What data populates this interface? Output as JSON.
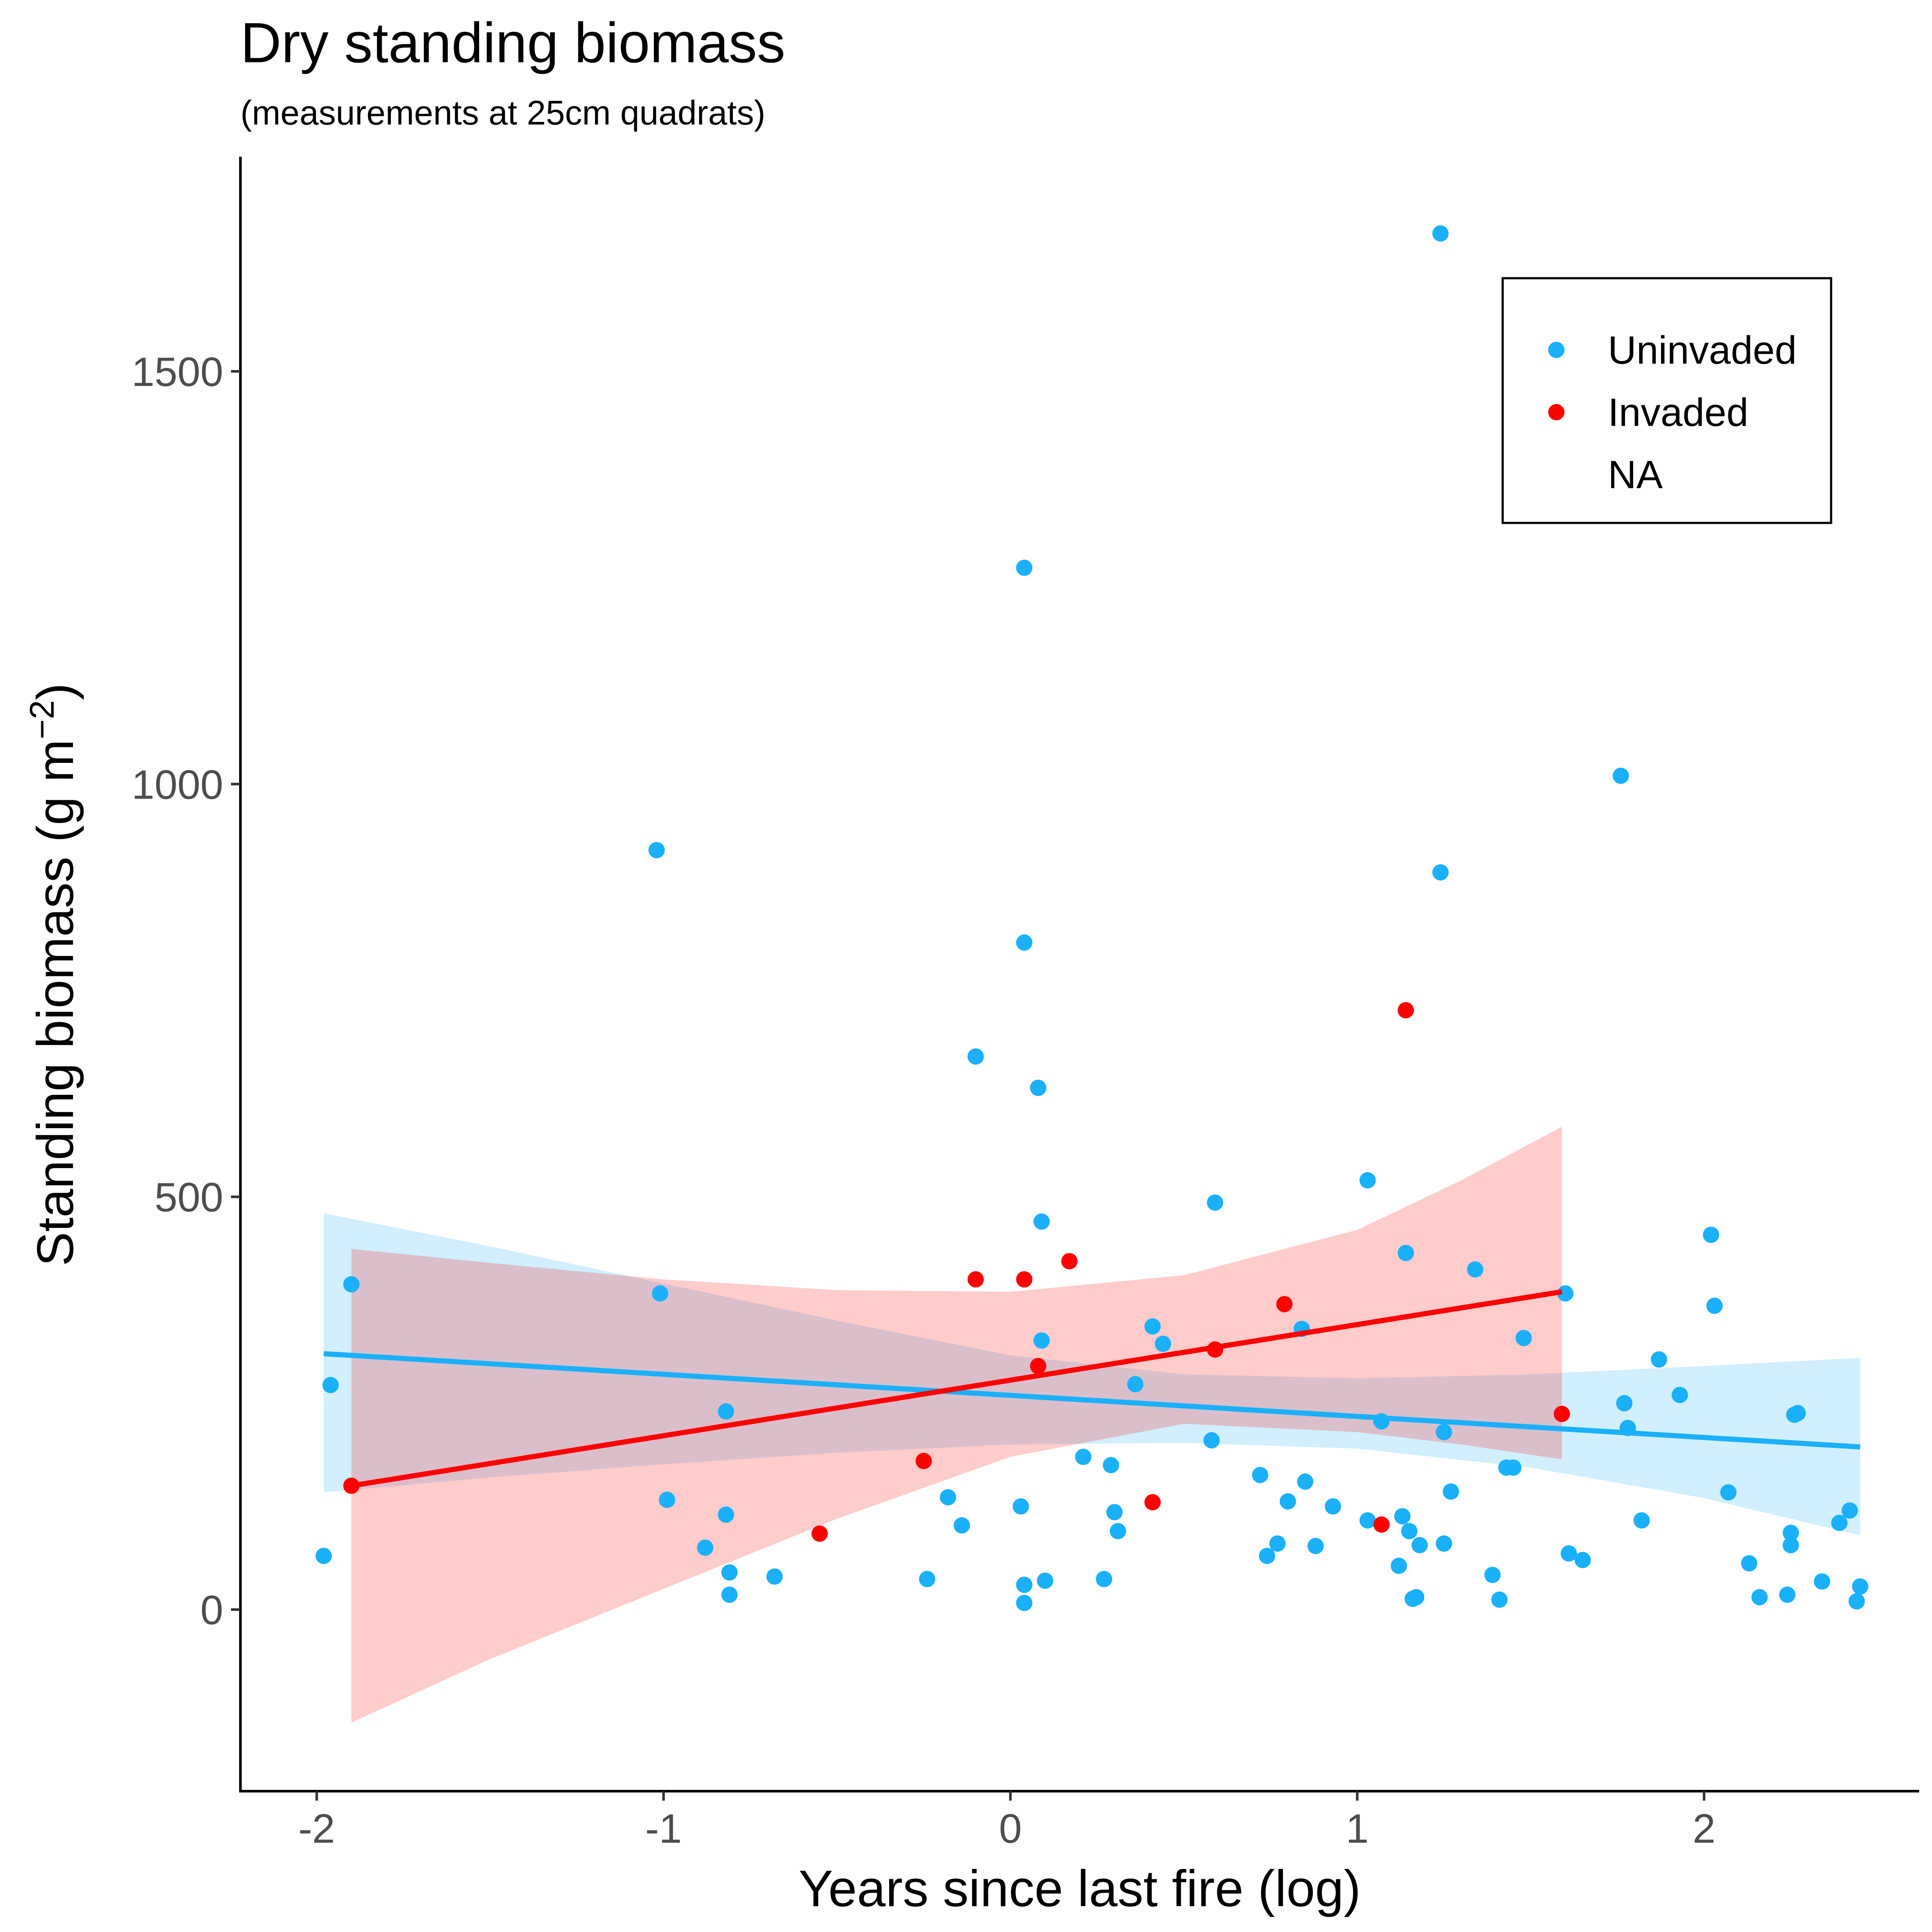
{
  "chart_data": {
    "type": "scatter",
    "title": "Dry standing biomass",
    "subtitle": "(measurements at 25cm quadrats)",
    "xlabel": "Years since last fire (log)",
    "ylabel_main": "Standing biomass (g m",
    "ylabel_sup": "−2",
    "ylabel_close": ")",
    "xlim": [
      -2.22,
      2.62
    ],
    "ylim": [
      -220,
      1760
    ],
    "xticks": [
      -2,
      -1,
      0,
      1,
      2
    ],
    "xtick_labels": [
      "-2",
      "-1",
      "0",
      "1",
      "2"
    ],
    "yticks": [
      0,
      500,
      1000,
      1500
    ],
    "ytick_labels": [
      "0",
      "500",
      "1000",
      "1500"
    ],
    "grid": false,
    "legend_position": "top-right",
    "legend": [
      {
        "label": "Uninvaded",
        "color": "#1AB0FA",
        "marker": true
      },
      {
        "label": "Invaded",
        "color": "#FF0000",
        "marker": true
      },
      {
        "label": "NA",
        "color": "#FFFFFF",
        "marker": false
      }
    ],
    "series": [
      {
        "name": "Uninvaded",
        "color": "#1AB0FA",
        "points": [
          [
            -1.98,
            65
          ],
          [
            -1.96,
            272
          ],
          [
            -1.9,
            394
          ],
          [
            -1.02,
            920
          ],
          [
            -1.01,
            383
          ],
          [
            -0.99,
            133
          ],
          [
            -0.88,
            75
          ],
          [
            -0.82,
            240
          ],
          [
            -0.82,
            115
          ],
          [
            -0.81,
            45
          ],
          [
            -0.81,
            18
          ],
          [
            -0.68,
            40
          ],
          [
            -0.24,
            37
          ],
          [
            -0.18,
            136
          ],
          [
            -0.14,
            102
          ],
          [
            -0.1,
            670
          ],
          [
            0.03,
            125
          ],
          [
            0.04,
            30
          ],
          [
            0.04,
            8
          ],
          [
            0.04,
            1262
          ],
          [
            0.04,
            808
          ],
          [
            0.08,
            632
          ],
          [
            0.09,
            470
          ],
          [
            0.09,
            326
          ],
          [
            0.1,
            35
          ],
          [
            0.21,
            185
          ],
          [
            0.27,
            37
          ],
          [
            0.29,
            175
          ],
          [
            0.3,
            118
          ],
          [
            0.31,
            95
          ],
          [
            0.36,
            273
          ],
          [
            0.41,
            343
          ],
          [
            0.44,
            322
          ],
          [
            0.58,
            205
          ],
          [
            0.59,
            493
          ],
          [
            0.72,
            163
          ],
          [
            0.74,
            65
          ],
          [
            0.77,
            80
          ],
          [
            0.8,
            131
          ],
          [
            0.84,
            340
          ],
          [
            0.85,
            155
          ],
          [
            0.88,
            77
          ],
          [
            0.93,
            125
          ],
          [
            1.03,
            108
          ],
          [
            1.03,
            520
          ],
          [
            1.07,
            228
          ],
          [
            1.12,
            53
          ],
          [
            1.13,
            113
          ],
          [
            1.14,
            432
          ],
          [
            1.15,
            95
          ],
          [
            1.16,
            13
          ],
          [
            1.17,
            15
          ],
          [
            1.18,
            78
          ],
          [
            1.24,
            1667
          ],
          [
            1.24,
            893
          ],
          [
            1.25,
            80
          ],
          [
            1.25,
            215
          ],
          [
            1.27,
            143
          ],
          [
            1.34,
            412
          ],
          [
            1.39,
            42
          ],
          [
            1.41,
            12
          ],
          [
            1.43,
            172
          ],
          [
            1.45,
            172
          ],
          [
            1.48,
            329
          ],
          [
            1.6,
            383
          ],
          [
            1.61,
            68
          ],
          [
            1.65,
            60
          ],
          [
            1.76,
            1010
          ],
          [
            1.77,
            250
          ],
          [
            1.78,
            220
          ],
          [
            1.82,
            108
          ],
          [
            1.87,
            303
          ],
          [
            1.93,
            260
          ],
          [
            2.02,
            454
          ],
          [
            2.03,
            368
          ],
          [
            2.07,
            142
          ],
          [
            2.13,
            56
          ],
          [
            2.16,
            15
          ],
          [
            2.24,
            18
          ],
          [
            2.25,
            78
          ],
          [
            2.25,
            93
          ],
          [
            2.26,
            236
          ],
          [
            2.27,
            238
          ],
          [
            2.34,
            34
          ],
          [
            2.39,
            105
          ],
          [
            2.42,
            120
          ],
          [
            2.44,
            10
          ],
          [
            2.45,
            28
          ]
        ],
        "fit": {
          "x0": -1.98,
          "y0": 310,
          "x1": 2.45,
          "y1": 197
        },
        "band": {
          "x": [
            -1.98,
            -1.5,
            -1.0,
            -0.5,
            0.0,
            0.5,
            1.0,
            1.5,
            2.0,
            2.45
          ],
          "lower": [
            142,
            160,
            176,
            190,
            200,
            202,
            195,
            172,
            135,
            90
          ],
          "upper": [
            480,
            440,
            395,
            350,
            308,
            285,
            280,
            285,
            295,
            305
          ]
        }
      },
      {
        "name": "Invaded",
        "color": "#FF0000",
        "points": [
          [
            -1.9,
            150
          ],
          [
            -0.55,
            92
          ],
          [
            -0.25,
            180
          ],
          [
            -0.1,
            400
          ],
          [
            0.04,
            400
          ],
          [
            0.08,
            295
          ],
          [
            0.17,
            422
          ],
          [
            0.41,
            130
          ],
          [
            0.59,
            315
          ],
          [
            0.79,
            370
          ],
          [
            1.07,
            103
          ],
          [
            1.14,
            726
          ],
          [
            1.59,
            237
          ]
        ],
        "fit": {
          "x0": -1.9,
          "y0": 150,
          "x1": 1.59,
          "y1": 385
        },
        "band": {
          "x": [
            -1.9,
            -1.5,
            -1.0,
            -0.5,
            0.0,
            0.5,
            1.0,
            1.3,
            1.59
          ],
          "lower": [
            -137,
            -60,
            25,
            110,
            185,
            225,
            215,
            200,
            182
          ],
          "upper": [
            437,
            420,
            400,
            387,
            385,
            405,
            460,
            520,
            585
          ]
        }
      }
    ]
  }
}
